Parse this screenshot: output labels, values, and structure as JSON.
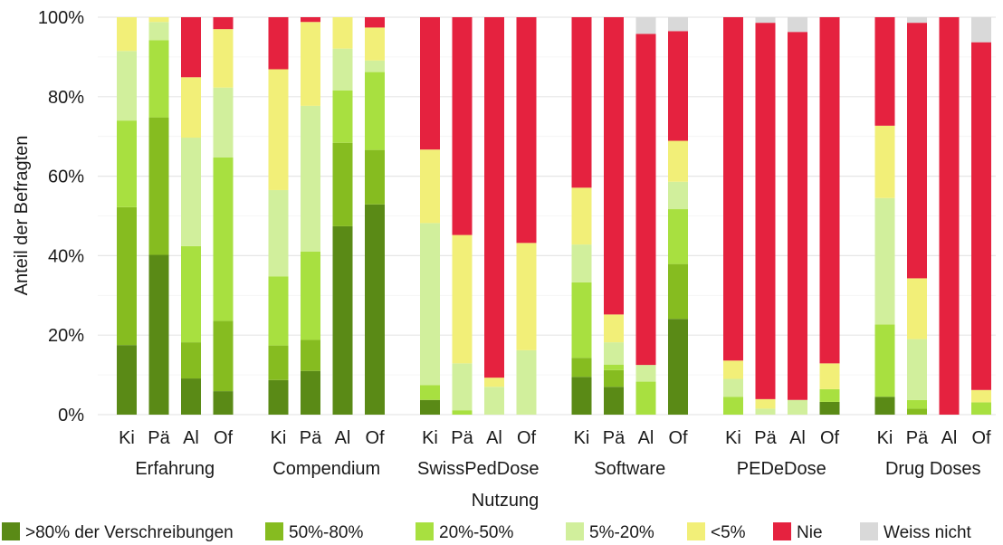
{
  "chart_data": {
    "type": "bar",
    "stacked": true,
    "normalized": true,
    "ylabel": "Anteil der Befragten",
    "ylim": [
      0,
      100
    ],
    "y_ticks": [
      "0%",
      "20%",
      "40%",
      "60%",
      "80%",
      "100%"
    ],
    "grid": true,
    "legend_title": "Nutzung",
    "legend_position": "bottom",
    "groups": [
      {
        "label": "Erfahrung",
        "bars": [
          {
            "label": "Ki",
            "values": [
              17.5,
              34.7,
              21.8,
              17.5,
              8.5,
              0,
              0
            ]
          },
          {
            "label": "Pä",
            "values": [
              40.2,
              34.6,
              19.4,
              4.6,
              1.2,
              0,
              0
            ]
          },
          {
            "label": "Al",
            "values": [
              9.1,
              9.1,
              24.2,
              27.3,
              15.2,
              15.1,
              0
            ]
          },
          {
            "label": "Of",
            "values": [
              5.9,
              17.7,
              41.1,
              17.6,
              14.7,
              3.0,
              0
            ]
          }
        ]
      },
      {
        "label": "Compendium",
        "bars": [
          {
            "label": "Ki",
            "values": [
              8.7,
              8.7,
              17.4,
              21.7,
              30.4,
              13.1,
              0
            ]
          },
          {
            "label": "Pä",
            "values": [
              11.0,
              7.8,
              22.2,
              36.7,
              21.1,
              1.2,
              0
            ]
          },
          {
            "label": "Al",
            "values": [
              47.4,
              21.0,
              13.2,
              10.5,
              7.9,
              0,
              0
            ]
          },
          {
            "label": "Of",
            "values": [
              52.9,
              13.7,
              19.6,
              2.9,
              8.3,
              2.6,
              0
            ]
          }
        ]
      },
      {
        "label": "SwissPedDose",
        "bars": [
          {
            "label": "Ki",
            "values": [
              3.7,
              0,
              3.7,
              40.8,
              18.5,
              33.3,
              0
            ]
          },
          {
            "label": "Pä",
            "values": [
              0,
              0,
              1.1,
              11.8,
              32.3,
              54.8,
              0
            ]
          },
          {
            "label": "Al",
            "values": [
              0,
              0,
              0,
              7.0,
              2.3,
              90.7,
              0
            ]
          },
          {
            "label": "Of",
            "values": [
              0,
              0,
              0,
              16.2,
              27.0,
              56.8,
              0
            ]
          }
        ]
      },
      {
        "label": "Software",
        "bars": [
          {
            "label": "Ki",
            "values": [
              9.5,
              4.8,
              19.0,
              9.5,
              14.3,
              42.9,
              0
            ]
          },
          {
            "label": "Pä",
            "values": [
              7.0,
              4.2,
              1.4,
              5.6,
              7.0,
              74.8,
              0
            ]
          },
          {
            "label": "Al",
            "values": [
              0,
              0,
              8.3,
              4.2,
              0,
              83.3,
              4.2
            ]
          },
          {
            "label": "Of",
            "values": [
              24.1,
              13.8,
              13.8,
              6.9,
              10.3,
              27.6,
              3.5
            ]
          }
        ]
      },
      {
        "label": "PEDeDose",
        "bars": [
          {
            "label": "Ki",
            "values": [
              0,
              0,
              4.5,
              4.5,
              4.6,
              86.4,
              0
            ]
          },
          {
            "label": "Pä",
            "values": [
              0,
              0,
              0,
              1.5,
              2.4,
              94.7,
              1.4
            ]
          },
          {
            "label": "Al",
            "values": [
              0,
              0,
              0,
              3.7,
              0,
              92.6,
              3.7
            ]
          },
          {
            "label": "Of",
            "values": [
              3.2,
              0,
              3.2,
              0,
              6.5,
              87.1,
              0
            ]
          }
        ]
      },
      {
        "label": "Drug Doses",
        "bars": [
          {
            "label": "Ki",
            "values": [
              4.5,
              0,
              18.2,
              31.8,
              18.2,
              27.3,
              0
            ]
          },
          {
            "label": "Pä",
            "values": [
              0,
              1.5,
              2.2,
              15.3,
              15.3,
              64.3,
              1.4
            ]
          },
          {
            "label": "Al",
            "values": [
              0,
              0,
              0,
              0,
              0,
              100,
              0
            ]
          },
          {
            "label": "Of",
            "values": [
              0,
              0,
              3.1,
              0,
              3.1,
              87.5,
              6.3
            ]
          }
        ]
      }
    ],
    "series": [
      {
        "name": ">80% der Verschreibungen",
        "color": "#5a8a16"
      },
      {
        "name": "50%-80%",
        "color": "#86bc20"
      },
      {
        "name": "20%-50%",
        "color": "#a8e040"
      },
      {
        "name": "5%-20%",
        "color": "#d1ef9c"
      },
      {
        "name": "<5%",
        "color": "#f2ef78"
      },
      {
        "name": "Nie",
        "color": "#e5223f"
      },
      {
        "name": "Weiss nicht",
        "color": "#d9d9d9"
      }
    ]
  }
}
